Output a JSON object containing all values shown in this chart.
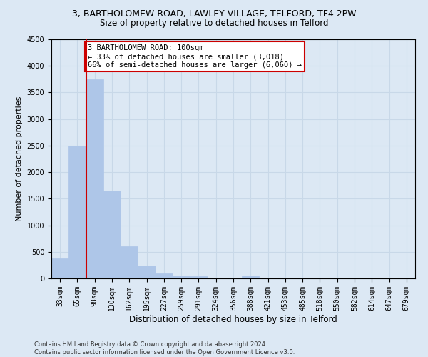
{
  "title1": "3, BARTHOLOMEW ROAD, LAWLEY VILLAGE, TELFORD, TF4 2PW",
  "title2": "Size of property relative to detached houses in Telford",
  "xlabel": "Distribution of detached houses by size in Telford",
  "ylabel": "Number of detached properties",
  "footer": "Contains HM Land Registry data © Crown copyright and database right 2024.\nContains public sector information licensed under the Open Government Licence v3.0.",
  "bin_labels": [
    "33sqm",
    "65sqm",
    "98sqm",
    "130sqm",
    "162sqm",
    "195sqm",
    "227sqm",
    "259sqm",
    "291sqm",
    "324sqm",
    "356sqm",
    "388sqm",
    "421sqm",
    "453sqm",
    "485sqm",
    "518sqm",
    "550sqm",
    "582sqm",
    "614sqm",
    "647sqm",
    "679sqm"
  ],
  "bar_values": [
    380,
    2500,
    3750,
    1650,
    600,
    240,
    100,
    55,
    45,
    0,
    0,
    55,
    0,
    0,
    0,
    0,
    0,
    0,
    0,
    0,
    0
  ],
  "bar_color": "#aec6e8",
  "bar_edge_color": "#aec6e8",
  "grid_color": "#c8d8e8",
  "background_color": "#dce8f4",
  "vline_color": "#cc0000",
  "ylim": [
    0,
    4500
  ],
  "yticks": [
    0,
    500,
    1000,
    1500,
    2000,
    2500,
    3000,
    3500,
    4000,
    4500
  ],
  "annotation_text": "3 BARTHOLOMEW ROAD: 100sqm\n← 33% of detached houses are smaller (3,018)\n66% of semi-detached houses are larger (6,060) →",
  "annotation_box_color": "#ffffff",
  "annotation_box_edge": "#cc0000",
  "title1_fontsize": 9,
  "title2_fontsize": 8.5,
  "tick_fontsize": 7,
  "ylabel_fontsize": 8,
  "xlabel_fontsize": 8.5,
  "footer_fontsize": 6,
  "annotation_fontsize": 7.5
}
